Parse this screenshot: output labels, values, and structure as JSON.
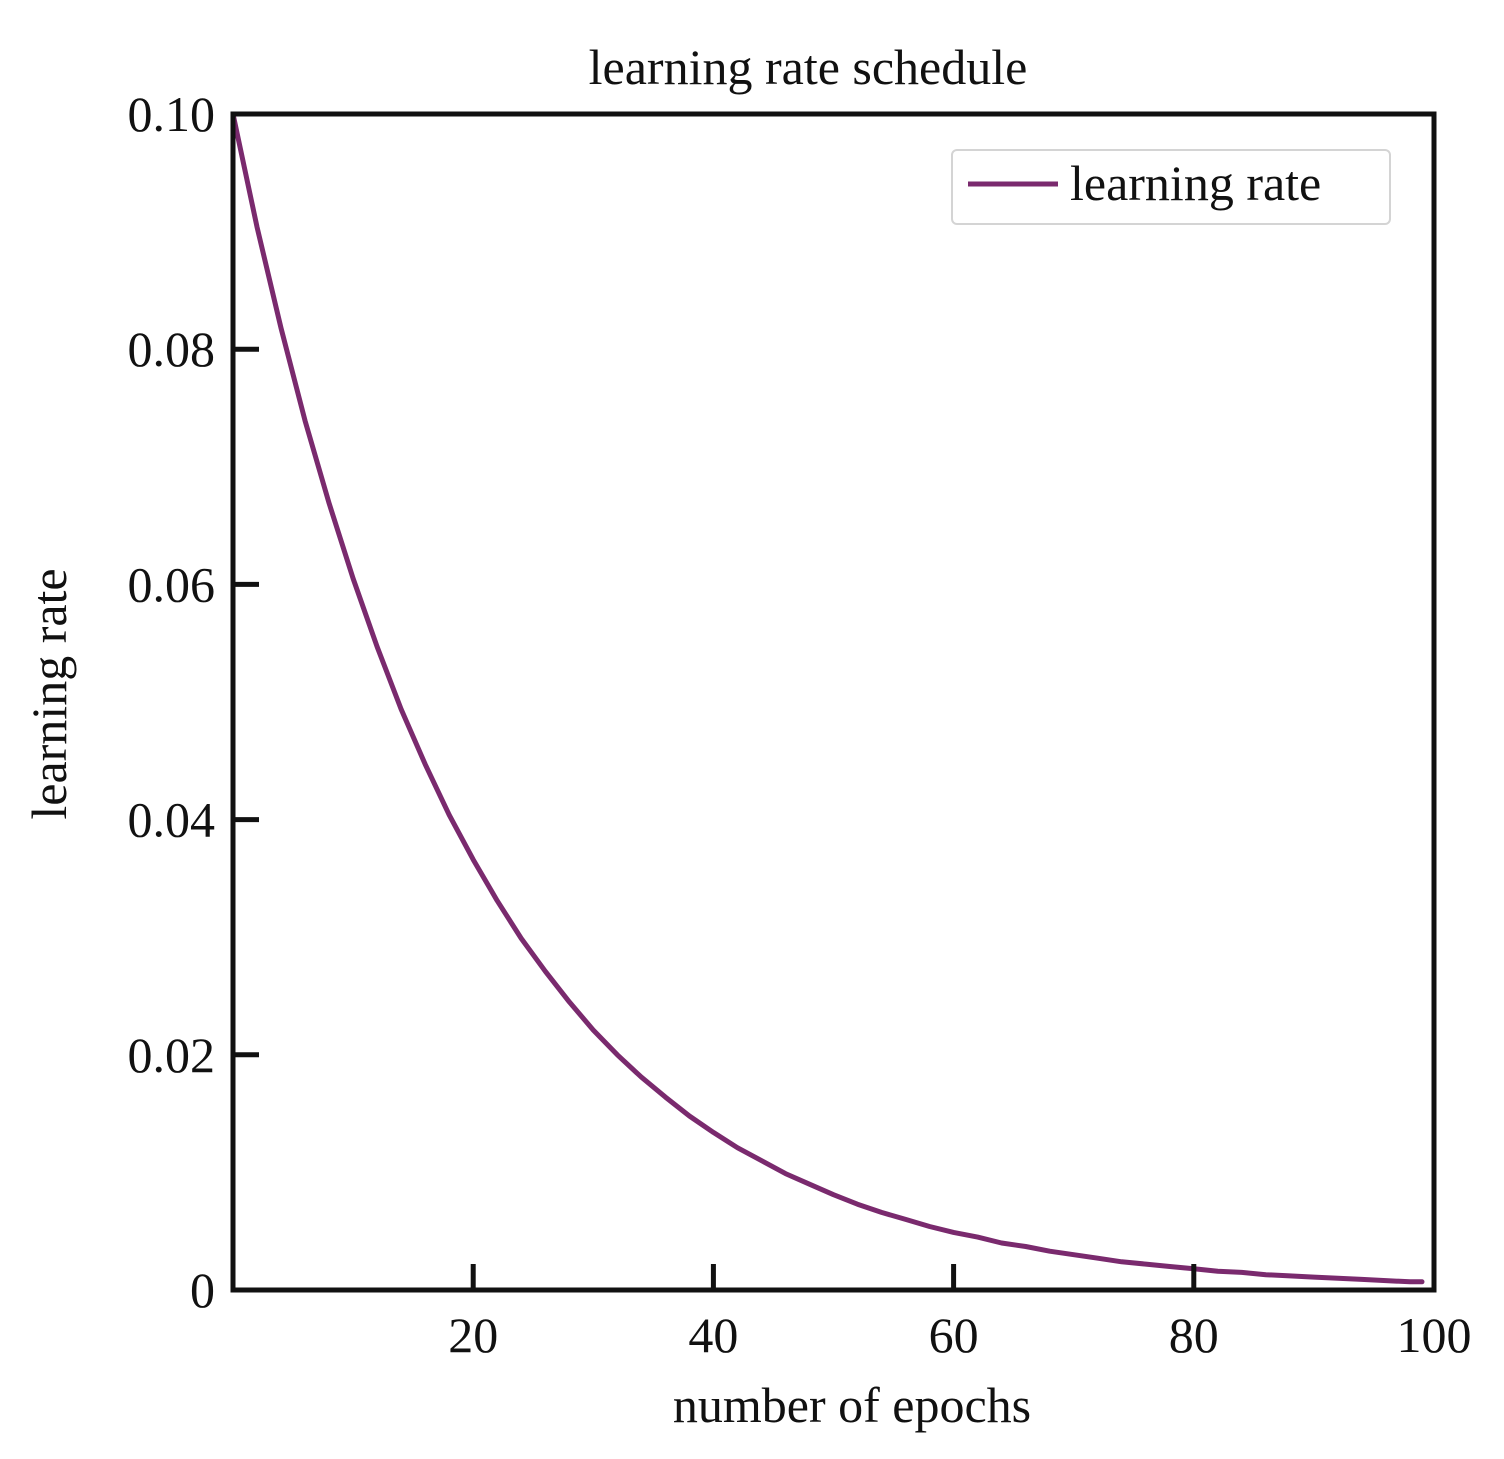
{
  "chart_data": {
    "type": "line",
    "title": "learning rate schedule",
    "xlabel": "number of epochs",
    "ylabel": "learning rate",
    "xlim": [
      0,
      100
    ],
    "ylim": [
      0,
      0.1
    ],
    "x_ticks": [
      20,
      40,
      60,
      80,
      100
    ],
    "x_tick_labels": [
      "20",
      "40",
      "60",
      "80",
      "100"
    ],
    "y_ticks": [
      0,
      0.02,
      0.04,
      0.06,
      0.08,
      0.1
    ],
    "y_tick_labels": [
      "0",
      "0.02",
      "0.04",
      "0.06",
      "0.08",
      "0.10"
    ],
    "grid": false,
    "legend_position": "top-right",
    "series": [
      {
        "name": "learning rate",
        "color": "#7a2a6e",
        "x": [
          0,
          2,
          4,
          6,
          8,
          10,
          12,
          14,
          16,
          18,
          20,
          22,
          24,
          26,
          28,
          30,
          32,
          34,
          36,
          38,
          40,
          42,
          44,
          46,
          48,
          50,
          52,
          54,
          56,
          58,
          60,
          62,
          64,
          66,
          68,
          70,
          72,
          74,
          76,
          78,
          80,
          82,
          84,
          86,
          88,
          90,
          92,
          94,
          96,
          98,
          99
        ],
        "y": [
          0.1,
          0.0904,
          0.0818,
          0.0739,
          0.0669,
          0.0605,
          0.0547,
          0.0494,
          0.0447,
          0.0404,
          0.0366,
          0.0331,
          0.0299,
          0.0271,
          0.0245,
          0.0221,
          0.02,
          0.0181,
          0.0164,
          0.0148,
          0.0134,
          0.0121,
          0.011,
          0.0099,
          0.009,
          0.0081,
          0.0073,
          0.0066,
          0.006,
          0.0054,
          0.0049,
          0.0045,
          0.004,
          0.0037,
          0.0033,
          0.003,
          0.0027,
          0.0024,
          0.0022,
          0.002,
          0.0018,
          0.0016,
          0.0015,
          0.0013,
          0.0012,
          0.0011,
          0.001,
          0.0009,
          0.0008,
          0.0007,
          0.0007
        ]
      }
    ]
  }
}
